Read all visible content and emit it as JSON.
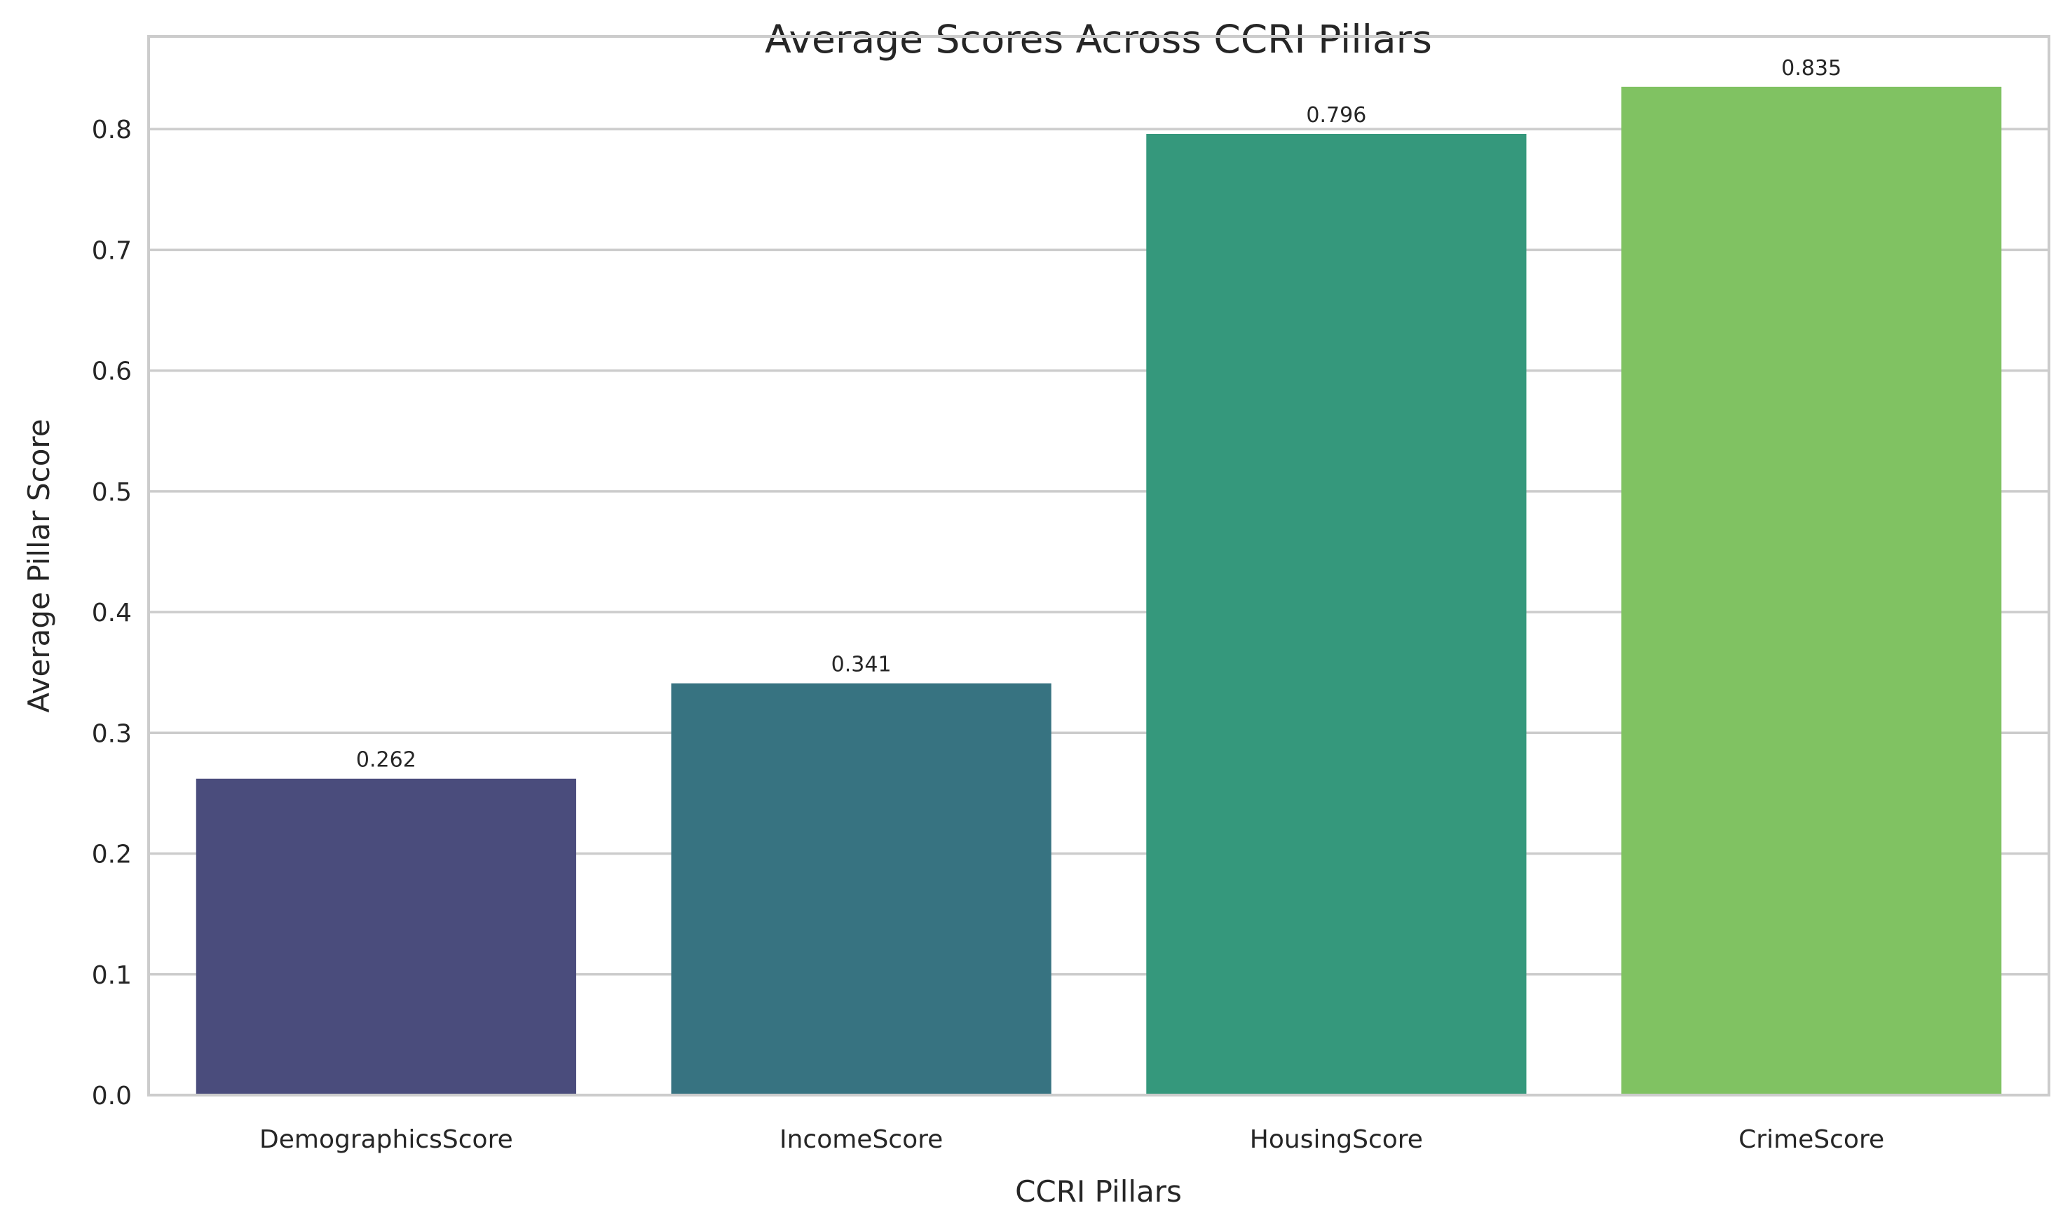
{
  "chart_data": {
    "type": "bar",
    "title": "Average Scores Across CCRI Pillars",
    "xlabel": "CCRI Pillars",
    "ylabel": "Average Pillar Score",
    "categories": [
      "DemographicsScore",
      "IncomeScore",
      "HousingScore",
      "CrimeScore"
    ],
    "values": [
      0.262,
      0.341,
      0.796,
      0.835
    ],
    "data_labels": [
      "0.262",
      "0.341",
      "0.796",
      "0.835"
    ],
    "colors": [
      "#4a4c7c",
      "#377381",
      "#35987c",
      "#80c262"
    ],
    "yticks": [
      "0.0",
      "0.1",
      "0.2",
      "0.3",
      "0.4",
      "0.5",
      "0.6",
      "0.7",
      "0.8"
    ],
    "ylim": [
      0,
      0.8767
    ],
    "grid": "horizontal",
    "legend": "none"
  }
}
